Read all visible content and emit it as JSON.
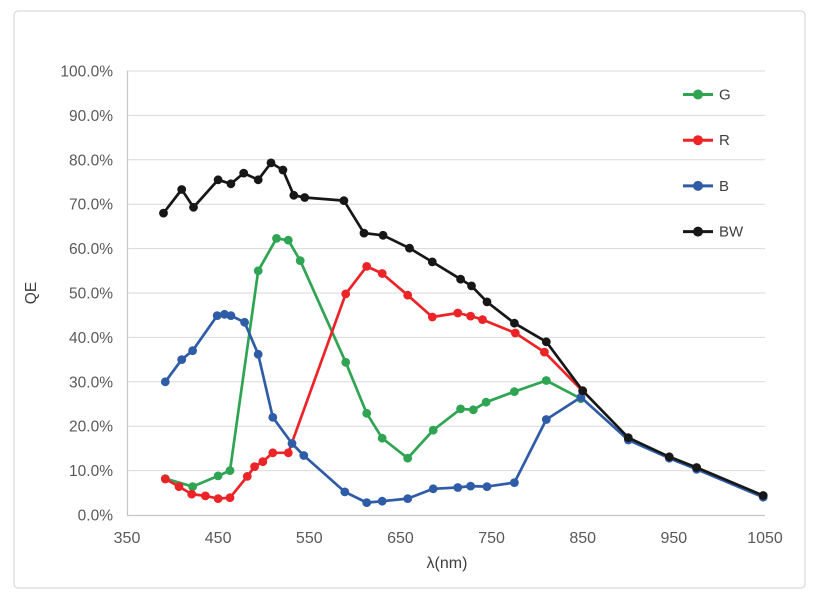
{
  "figure": {
    "background": "#ffffff",
    "border_color": "#d9d9d9"
  },
  "chart_data": {
    "type": "line",
    "title": "",
    "xlabel": "λ(nm)",
    "ylabel": "QE",
    "xlim": [
      350,
      1050
    ],
    "ylim_percent": [
      0,
      100
    ],
    "x_ticks": [
      350,
      450,
      550,
      650,
      750,
      850,
      950,
      1050
    ],
    "y_ticks_percent": [
      0,
      10,
      20,
      30,
      40,
      50,
      60,
      70,
      80,
      90,
      100
    ],
    "y_tick_labels": [
      "0.0%",
      "10.0%",
      "20.0%",
      "30.0%",
      "40.0%",
      "50.0%",
      "60.0%",
      "70.0%",
      "80.0%",
      "90.0%",
      "100.0%"
    ],
    "grid": "horizontal",
    "legend": {
      "position": "upper-right",
      "entries": [
        "G",
        "R",
        "B",
        "BW"
      ]
    },
    "style": {
      "gridline_color": "#d9d9d9",
      "axis_line_color": "#c6c6c6",
      "tick_label_color": "#595959",
      "axis_title_color": "#3f3f3f",
      "legend_label_color": "#404040",
      "marker_radius": 4.4,
      "line_width": 2.7
    },
    "series": [
      {
        "name": "G",
        "color": "#2fa452",
        "points": [
          [
            392,
            8.2
          ],
          [
            422,
            6.4
          ],
          [
            450,
            8.8
          ],
          [
            463,
            10.0
          ],
          [
            494,
            55.0
          ],
          [
            514,
            62.3
          ],
          [
            527,
            61.9
          ],
          [
            540,
            57.3
          ],
          [
            590,
            34.4
          ],
          [
            613,
            22.9
          ],
          [
            630,
            17.3
          ],
          [
            658,
            12.8
          ],
          [
            686,
            19.1
          ],
          [
            716,
            23.9
          ],
          [
            730,
            23.7
          ],
          [
            744,
            25.4
          ],
          [
            775,
            27.8
          ],
          [
            810,
            30.3
          ],
          [
            848,
            26.2
          ]
        ]
      },
      {
        "name": "R",
        "color": "#ec2427",
        "points": [
          [
            392,
            8.1
          ],
          [
            407,
            6.4
          ],
          [
            421,
            4.7
          ],
          [
            436,
            4.3
          ],
          [
            450,
            3.7
          ],
          [
            463,
            3.9
          ],
          [
            482,
            8.7
          ],
          [
            490,
            10.9
          ],
          [
            499,
            12.0
          ],
          [
            510,
            14.0
          ],
          [
            527,
            14.0
          ],
          [
            590,
            49.8
          ],
          [
            613,
            56.0
          ],
          [
            630,
            54.4
          ],
          [
            658,
            49.5
          ],
          [
            685,
            44.6
          ],
          [
            713,
            45.5
          ],
          [
            727,
            44.8
          ],
          [
            740,
            44.0
          ],
          [
            776,
            41.0
          ],
          [
            808,
            36.7
          ],
          [
            850,
            27.9
          ]
        ]
      },
      {
        "name": "B",
        "color": "#2e5ca6",
        "points": [
          [
            392,
            30.0
          ],
          [
            410,
            35.0
          ],
          [
            422,
            37.0
          ],
          [
            449,
            44.9
          ],
          [
            457,
            45.2
          ],
          [
            464,
            44.9
          ],
          [
            479,
            43.4
          ],
          [
            494,
            36.2
          ],
          [
            510,
            22.0
          ],
          [
            531,
            16.1
          ],
          [
            544,
            13.4
          ],
          [
            589,
            5.2
          ],
          [
            613,
            2.8
          ],
          [
            630,
            3.1
          ],
          [
            658,
            3.7
          ],
          [
            686,
            5.9
          ],
          [
            713,
            6.2
          ],
          [
            727,
            6.5
          ],
          [
            745,
            6.4
          ],
          [
            775,
            7.3
          ],
          [
            810,
            21.5
          ],
          [
            848,
            26.5
          ],
          [
            900,
            16.9
          ],
          [
            945,
            12.8
          ],
          [
            975,
            10.3
          ],
          [
            1048,
            4.0
          ]
        ]
      },
      {
        "name": "BW",
        "color": "#171717",
        "points": [
          [
            390,
            68.0
          ],
          [
            410,
            73.3
          ],
          [
            423,
            69.3
          ],
          [
            450,
            75.5
          ],
          [
            464,
            74.6
          ],
          [
            478,
            77.0
          ],
          [
            494,
            75.5
          ],
          [
            508,
            79.3
          ],
          [
            521,
            77.7
          ],
          [
            533,
            72.0
          ],
          [
            545,
            71.5
          ],
          [
            588,
            70.8
          ],
          [
            610,
            63.5
          ],
          [
            631,
            63.0
          ],
          [
            660,
            60.1
          ],
          [
            685,
            57.0
          ],
          [
            716,
            53.1
          ],
          [
            728,
            51.6
          ],
          [
            745,
            48.0
          ],
          [
            775,
            43.2
          ],
          [
            810,
            39.0
          ],
          [
            850,
            28.0
          ],
          [
            900,
            17.4
          ],
          [
            945,
            13.1
          ],
          [
            975,
            10.7
          ],
          [
            1048,
            4.4
          ]
        ]
      }
    ]
  }
}
